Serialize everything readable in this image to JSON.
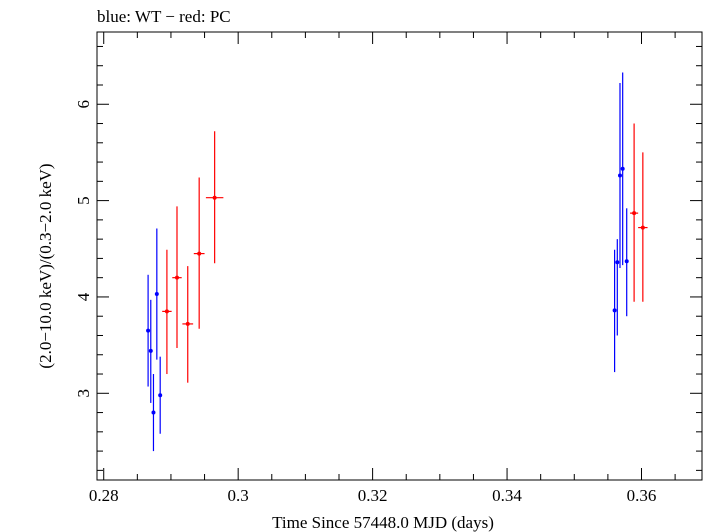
{
  "chart_data": {
    "type": "scatter",
    "title": "blue: WT − red: PC",
    "xlabel": "Time Since 57448.0 MJD (days)",
    "ylabel": "(2.0−10.0 keV)/(0.3−2.0 keV)",
    "xlim": [
      0.279,
      0.369
    ],
    "ylim": [
      2.1,
      6.75
    ],
    "x_ticks": [
      0.28,
      0.3,
      0.32,
      0.34,
      0.36
    ],
    "x_tick_labels": [
      "0.28",
      "0.3",
      "0.32",
      "0.34",
      "0.36"
    ],
    "y_ticks": [
      3,
      4,
      5,
      6
    ],
    "y_tick_labels": [
      "3",
      "4",
      "5",
      "6"
    ],
    "grid": false,
    "series": [
      {
        "name": "WT",
        "color": "#0000ff",
        "points": [
          {
            "x": 0.2866,
            "y": 3.65,
            "xerr": 0.0002,
            "ylo": 3.07,
            "yhi": 4.23
          },
          {
            "x": 0.287,
            "y": 3.44,
            "xerr": 0.0002,
            "ylo": 2.9,
            "yhi": 3.97
          },
          {
            "x": 0.2874,
            "y": 2.8,
            "xerr": 0.0002,
            "ylo": 2.4,
            "yhi": 3.2
          },
          {
            "x": 0.2879,
            "y": 4.03,
            "xerr": 0.0002,
            "ylo": 3.35,
            "yhi": 4.71
          },
          {
            "x": 0.2884,
            "y": 2.98,
            "xerr": 0.0002,
            "ylo": 2.58,
            "yhi": 3.38
          },
          {
            "x": 0.356,
            "y": 3.86,
            "xerr": 0.0002,
            "ylo": 3.22,
            "yhi": 4.49
          },
          {
            "x": 0.3564,
            "y": 4.36,
            "xerr": 0.0002,
            "ylo": 3.6,
            "yhi": 4.6
          },
          {
            "x": 0.3568,
            "y": 5.26,
            "xerr": 0.0002,
            "ylo": 4.3,
            "yhi": 6.22
          },
          {
            "x": 0.3572,
            "y": 5.33,
            "xerr": 0.0002,
            "ylo": 4.33,
            "yhi": 6.33
          },
          {
            "x": 0.3578,
            "y": 4.37,
            "xerr": 0.0002,
            "ylo": 3.8,
            "yhi": 4.92
          }
        ]
      },
      {
        "name": "PC",
        "color": "#ff0000",
        "points": [
          {
            "x": 0.2894,
            "y": 3.85,
            "xerr": 0.0007,
            "ylo": 3.2,
            "yhi": 4.49
          },
          {
            "x": 0.2909,
            "y": 4.2,
            "xerr": 0.0007,
            "ylo": 3.47,
            "yhi": 4.94
          },
          {
            "x": 0.2925,
            "y": 3.72,
            "xerr": 0.0008,
            "ylo": 3.11,
            "yhi": 4.32
          },
          {
            "x": 0.2942,
            "y": 4.45,
            "xerr": 0.0008,
            "ylo": 3.67,
            "yhi": 5.24
          },
          {
            "x": 0.2965,
            "y": 5.03,
            "xerr": 0.0013,
            "ylo": 4.35,
            "yhi": 5.72
          },
          {
            "x": 0.3589,
            "y": 4.87,
            "xerr": 0.0006,
            "ylo": 3.95,
            "yhi": 5.8
          },
          {
            "x": 0.3602,
            "y": 4.72,
            "xerr": 0.0007,
            "ylo": 3.95,
            "yhi": 5.5
          }
        ]
      }
    ]
  }
}
